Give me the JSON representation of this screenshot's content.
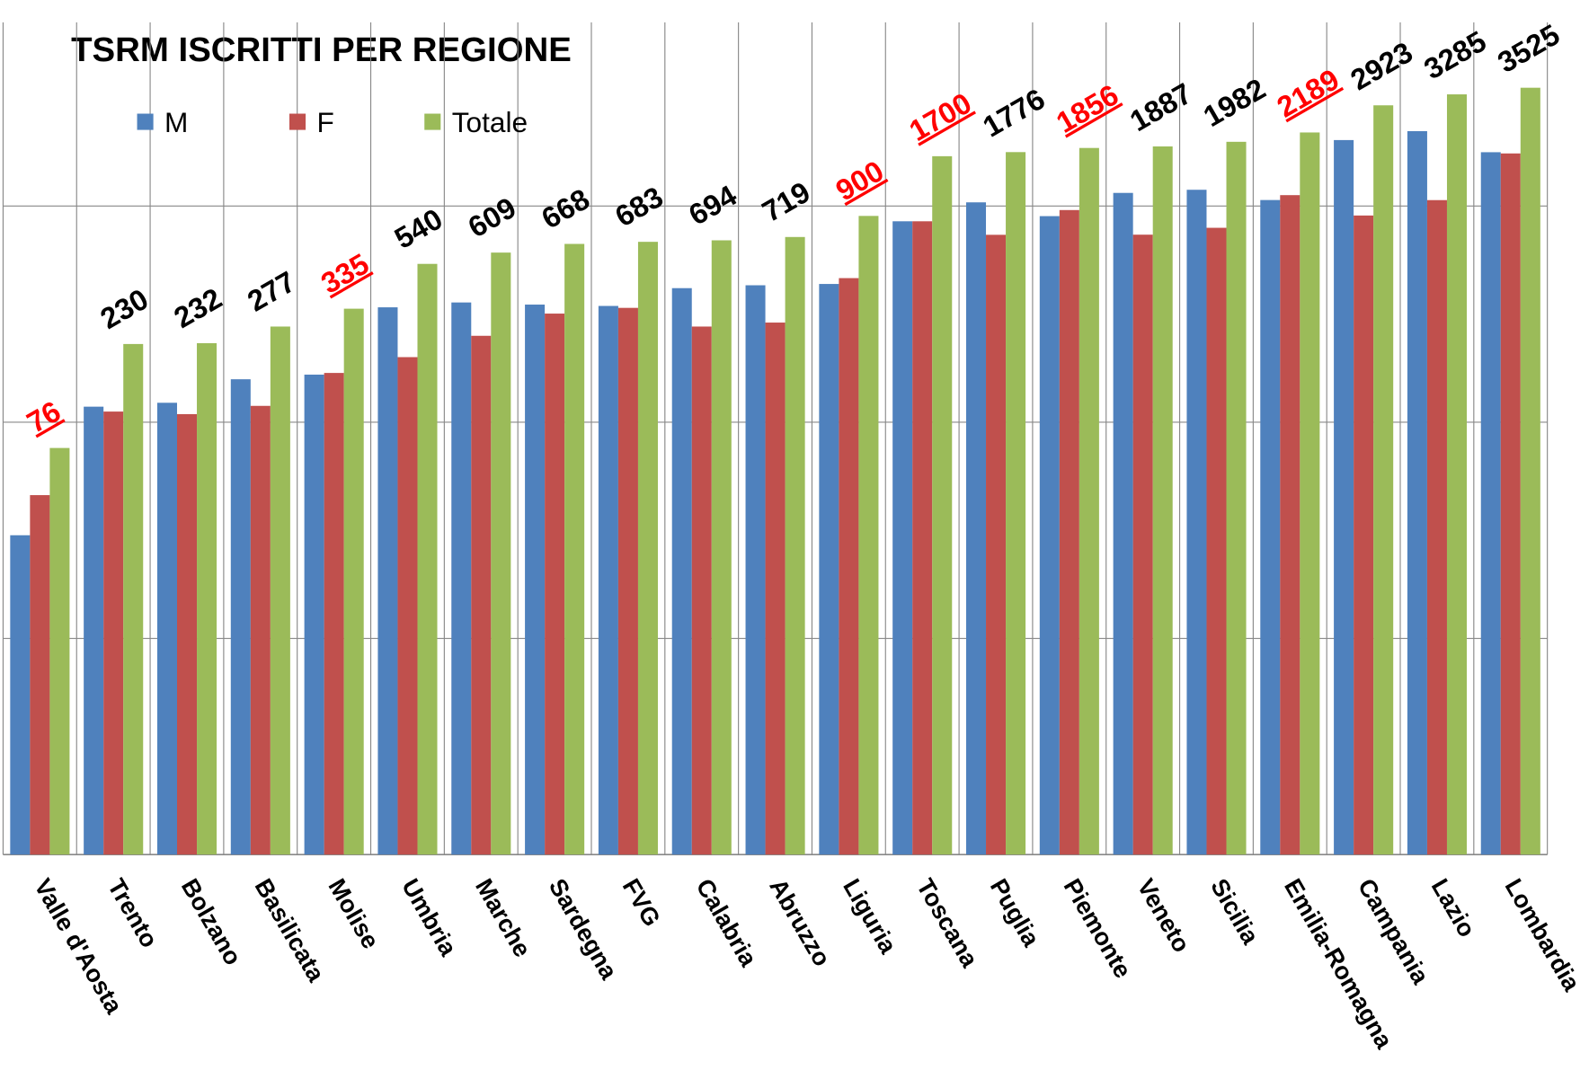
{
  "chart_data": {
    "type": "bar",
    "title": "TSRM ISCRITTI PER REGIONE",
    "log_scale": true,
    "grid": true,
    "ylim": [
      1,
      10000
    ],
    "yticks": [
      1,
      10,
      100,
      1000
    ],
    "categories": [
      "Valle d'Aosta",
      "Trento",
      "Bolzano",
      "Basilicata",
      "Molise",
      "Umbria",
      "Marche",
      "Sardegna",
      "FVG",
      "Calabria",
      "Abruzzo",
      "Liguria",
      "Toscana",
      "Puglia",
      "Piemonte",
      "Veneto",
      "Sicilia",
      "Emilia-Romagna",
      "Campania",
      "Lazio",
      "Lombardia"
    ],
    "series": [
      {
        "name": "M",
        "color": "#4f81bd",
        "values": [
          30,
          118,
          123,
          158,
          166,
          340,
          358,
          350,
          345,
          417,
          430,
          436,
          850,
          1040,
          898,
          1150,
          1189,
          1066,
          2019,
          2220,
          1774
        ]
      },
      {
        "name": "F",
        "color": "#c0504d",
        "values": [
          46,
          112,
          109,
          119,
          169,
          200,
          251,
          318,
          338,
          277,
          289,
          464,
          850,
          736,
          958,
          737,
          793,
          1123,
          904,
          1065,
          1751
        ]
      },
      {
        "name": "Totale",
        "color": "#9bbb59",
        "values": [
          76,
          230,
          232,
          277,
          335,
          540,
          609,
          668,
          683,
          694,
          719,
          900,
          1700,
          1776,
          1856,
          1887,
          1982,
          2189,
          2923,
          3285,
          3525
        ]
      }
    ],
    "value_label_colors": [
      "#ff0000",
      "#000000",
      "#000000",
      "#000000",
      "#ff0000",
      "#000000",
      "#000000",
      "#000000",
      "#000000",
      "#000000",
      "#000000",
      "#ff0000",
      "#ff0000",
      "#000000",
      "#ff0000",
      "#000000",
      "#000000",
      "#ff0000",
      "#000000",
      "#000000",
      "#000000"
    ]
  }
}
